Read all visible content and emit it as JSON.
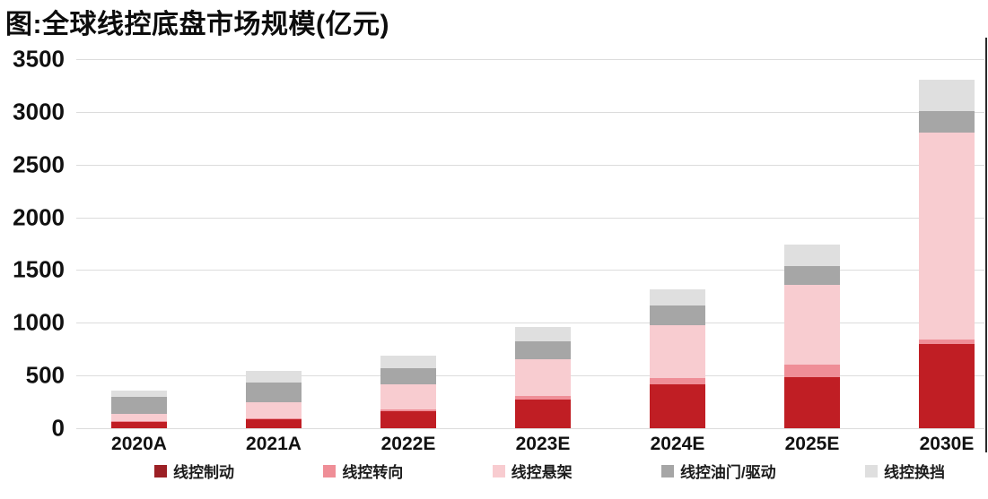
{
  "title": "图:全球线控底盘市场规模(亿元)",
  "chart_data": {
    "type": "bar",
    "stacked": true,
    "title": "图:全球线控底盘市场规模(亿元)",
    "categories": [
      "2020A",
      "2021A",
      "2022E",
      "2023E",
      "2024E",
      "2025E",
      "2030E"
    ],
    "series": [
      {
        "name": "线控制动",
        "color": "#c01e24",
        "values": [
          60,
          85,
          165,
          275,
          420,
          485,
          800
        ]
      },
      {
        "name": "线控转向",
        "color": "#ef8e97",
        "values": [
          10,
          10,
          10,
          35,
          55,
          120,
          40
        ]
      },
      {
        "name": "线控悬架",
        "color": "#f8ccd0",
        "values": [
          65,
          150,
          240,
          340,
          500,
          750,
          1960
        ]
      },
      {
        "name": "线控油门/驱动",
        "color": "#a6a6a6",
        "values": [
          165,
          185,
          155,
          170,
          185,
          185,
          205
        ]
      },
      {
        "name": "线控换挡",
        "color": "#dfdfdf",
        "values": [
          60,
          110,
          115,
          140,
          160,
          200,
          300
        ]
      }
    ],
    "totals": [
      360,
      540,
      685,
      960,
      1320,
      1740,
      3305
    ],
    "ylim": [
      0,
      3500
    ],
    "yticks": [
      0,
      500,
      1000,
      1500,
      2000,
      2500,
      3000,
      3500
    ],
    "grid": true,
    "legend_position": "bottom",
    "xlabel": "",
    "ylabel": ""
  }
}
